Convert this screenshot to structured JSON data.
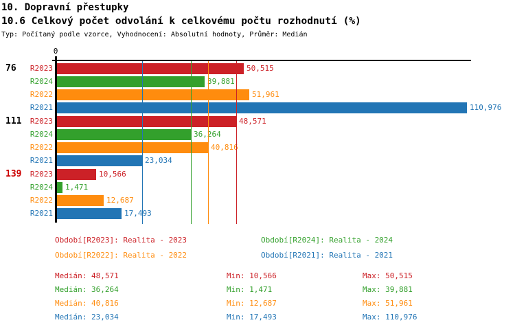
{
  "page": {
    "title": "10. Dopravní přestupky",
    "subtitle": "10.6 Celkový počet odvolání k celkovému počtu rozhodnutí (%)",
    "meta": "Typ: Počítaný podle vzorce, Vyhodnocení: Absolutní hodnoty, Průměr: Medián"
  },
  "axis": {
    "zero_label": "0"
  },
  "colors": {
    "series": {
      "R2023": "#CC2127",
      "R2024": "#33A02C",
      "R2022": "#FF8C0E",
      "R2021": "#2275B5"
    },
    "group_label_normal": "#000000",
    "group_label_highlight": "#CC0000",
    "axis": "#000000"
  },
  "chart_data": {
    "type": "bar",
    "orientation": "horizontal",
    "unit": "%",
    "note": "values shown with Czech decimal comma",
    "xlim": [
      0,
      112
    ],
    "series_order": [
      "R2023",
      "R2024",
      "R2022",
      "R2021"
    ],
    "groups": [
      {
        "label": "76",
        "highlighted": false,
        "bars": [
          {
            "series": "R2023",
            "value": 50.515,
            "display": "50,515"
          },
          {
            "series": "R2024",
            "value": 39.881,
            "display": "39,881"
          },
          {
            "series": "R2022",
            "value": 51.961,
            "display": "51,961"
          },
          {
            "series": "R2021",
            "value": 110.976,
            "display": "110,976"
          }
        ]
      },
      {
        "label": "111",
        "highlighted": false,
        "bars": [
          {
            "series": "R2023",
            "value": 48.571,
            "display": "48,571"
          },
          {
            "series": "R2024",
            "value": 36.264,
            "display": "36,264"
          },
          {
            "series": "R2022",
            "value": 40.816,
            "display": "40,816"
          },
          {
            "series": "R2021",
            "value": 23.034,
            "display": "23,034"
          }
        ]
      },
      {
        "label": "139",
        "highlighted": true,
        "bars": [
          {
            "series": "R2023",
            "value": 10.566,
            "display": "10,566"
          },
          {
            "series": "R2024",
            "value": 1.471,
            "display": "1,471"
          },
          {
            "series": "R2022",
            "value": 12.687,
            "display": "12,687"
          },
          {
            "series": "R2021",
            "value": 17.493,
            "display": "17,493"
          }
        ]
      }
    ],
    "medians": [
      {
        "series": "R2023",
        "value": 48.571
      },
      {
        "series": "R2024",
        "value": 36.264
      },
      {
        "series": "R2022",
        "value": 40.816
      },
      {
        "series": "R2021",
        "value": 23.034
      }
    ]
  },
  "legend": [
    {
      "series": "R2023",
      "label": "Období[R2023]: Realita - 2023"
    },
    {
      "series": "R2024",
      "label": "Období[R2024]: Realita - 2024"
    },
    {
      "series": "R2022",
      "label": "Období[R2022]: Realita - 2022"
    },
    {
      "series": "R2021",
      "label": "Období[R2021]: Realita - 2021"
    }
  ],
  "stats": [
    {
      "series": "R2023",
      "median": "Medián: 48,571",
      "min": "Min: 10,566",
      "max": "Max: 50,515"
    },
    {
      "series": "R2024",
      "median": "Medián: 36,264",
      "min": "Min: 1,471",
      "max": "Max: 39,881"
    },
    {
      "series": "R2022",
      "median": "Medián: 40,816",
      "min": "Min: 12,687",
      "max": "Max: 51,961"
    },
    {
      "series": "R2021",
      "median": "Medián: 23,034",
      "min": "Min: 17,493",
      "max": "Max: 110,976"
    }
  ]
}
